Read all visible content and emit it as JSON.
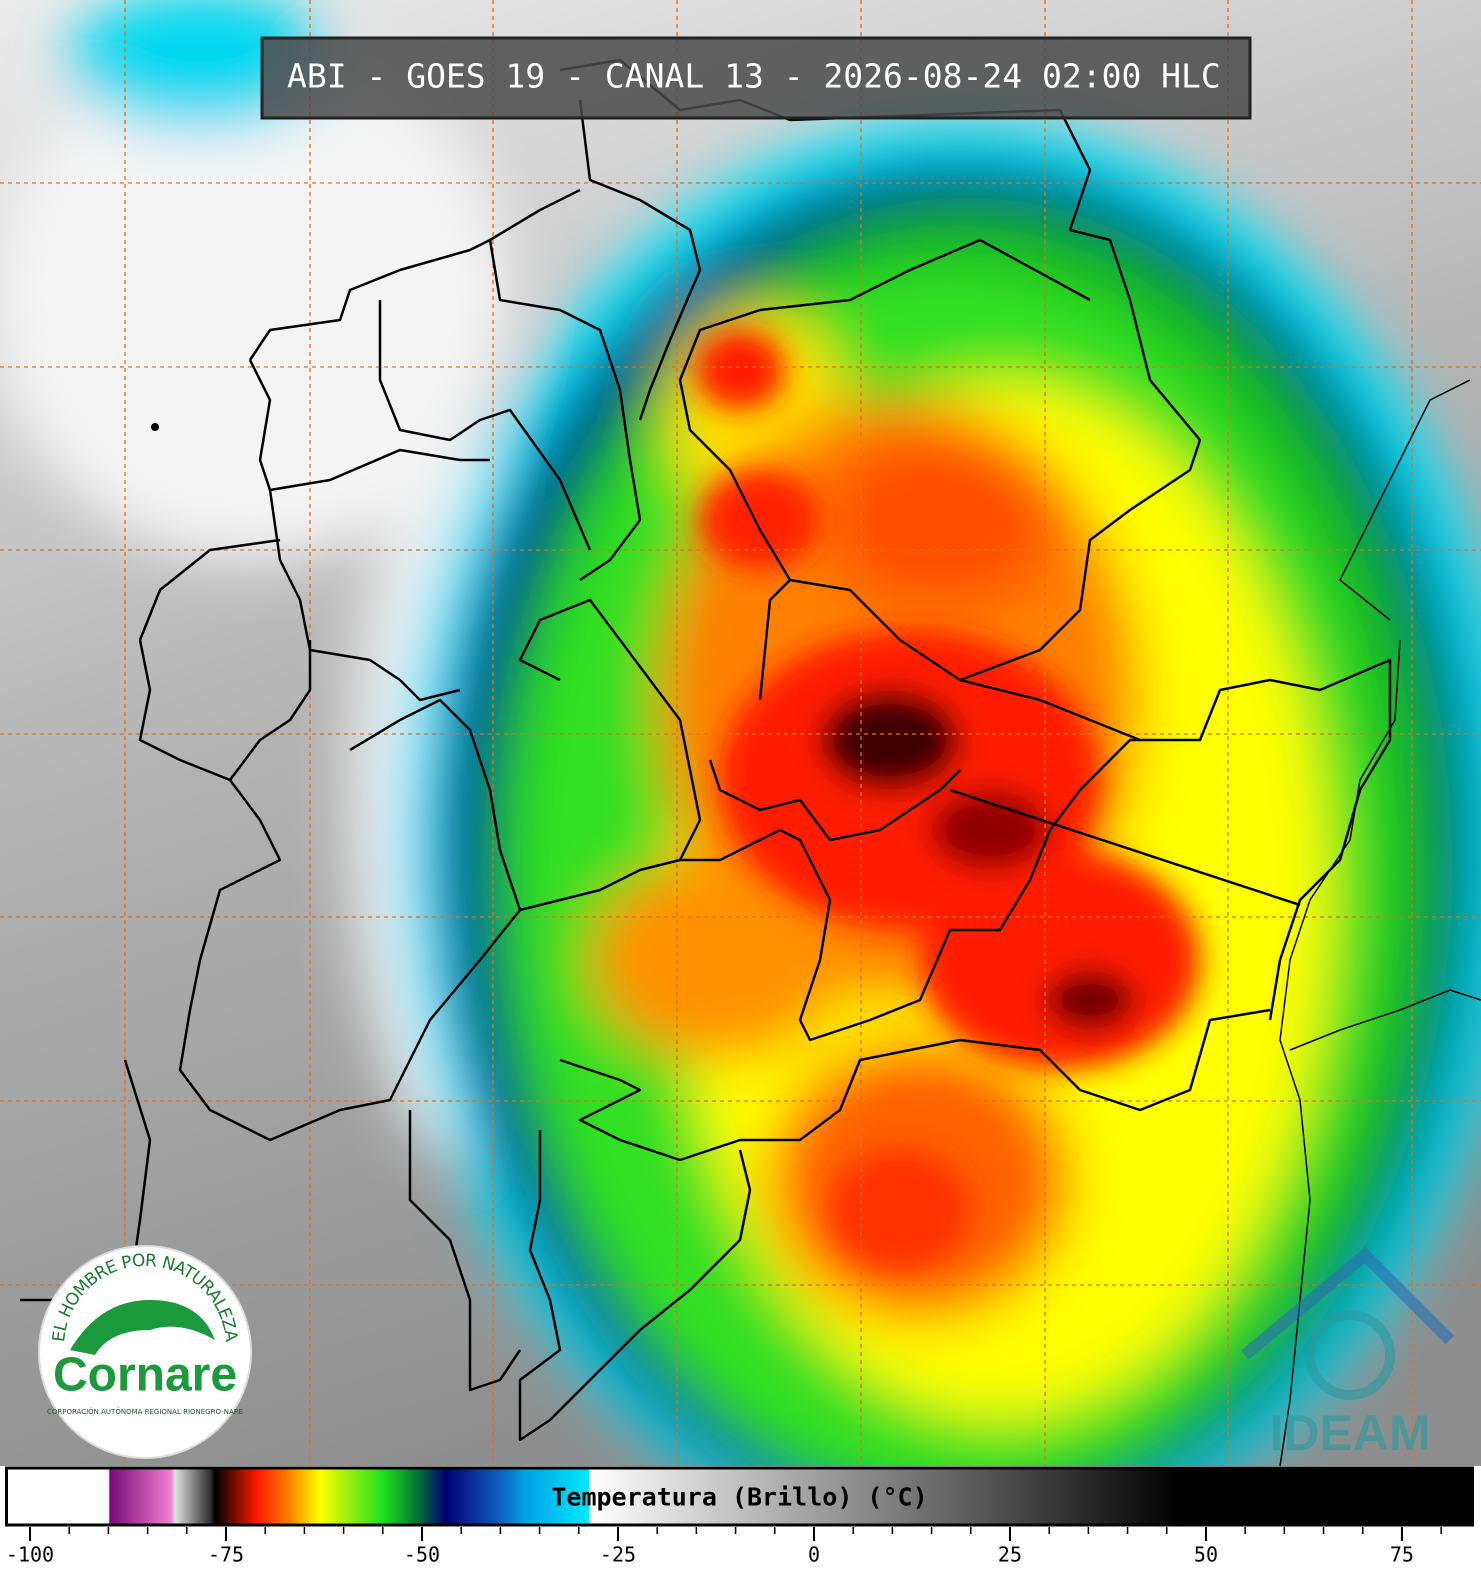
{
  "header": {
    "title": "ABI - GOES 19 - CANAL 13 - 2026-08-24 02:00 HLC"
  },
  "colorbar": {
    "label": "Temperatura (Brillo) (°C)",
    "lim": [
      -103,
      84
    ],
    "ticks": [
      -100,
      -75,
      -50,
      -25,
      0,
      25,
      50,
      75
    ],
    "stops": [
      {
        "value": -103,
        "color": "#ffffff"
      },
      {
        "value": -90,
        "color": "#ffffff"
      },
      {
        "value": -89.8,
        "color": "#7a0a7a"
      },
      {
        "value": -82,
        "color": "#f080d0"
      },
      {
        "value": -81.5,
        "color": "#e0e0e0"
      },
      {
        "value": -77,
        "color": "#303030"
      },
      {
        "value": -76.4,
        "color": "#000000"
      },
      {
        "value": -71,
        "color": "#ff1a00"
      },
      {
        "value": -67,
        "color": "#ff8000"
      },
      {
        "value": -63,
        "color": "#ffff00"
      },
      {
        "value": -55,
        "color": "#20e020"
      },
      {
        "value": -51,
        "color": "#008030"
      },
      {
        "value": -47,
        "color": "#000070"
      },
      {
        "value": -40,
        "color": "#1060c0"
      },
      {
        "value": -37,
        "color": "#00a0e0"
      },
      {
        "value": -28.7,
        "color": "#00e8ff"
      },
      {
        "value": -28.6,
        "color": "#ffffff"
      },
      {
        "value": 0,
        "color": "#a0a0a0"
      },
      {
        "value": 46.7,
        "color": "#000000"
      },
      {
        "value": 84,
        "color": "#000000"
      }
    ]
  },
  "logos": {
    "cornare": {
      "motto": "EL HOMBRE POR NATURALEZA",
      "name": "Cornare",
      "subtitle": "CORPORACIÓN AUTÓNOMA REGIONAL RIONEGRO-NARE"
    },
    "ideam": "IDEAM"
  }
}
